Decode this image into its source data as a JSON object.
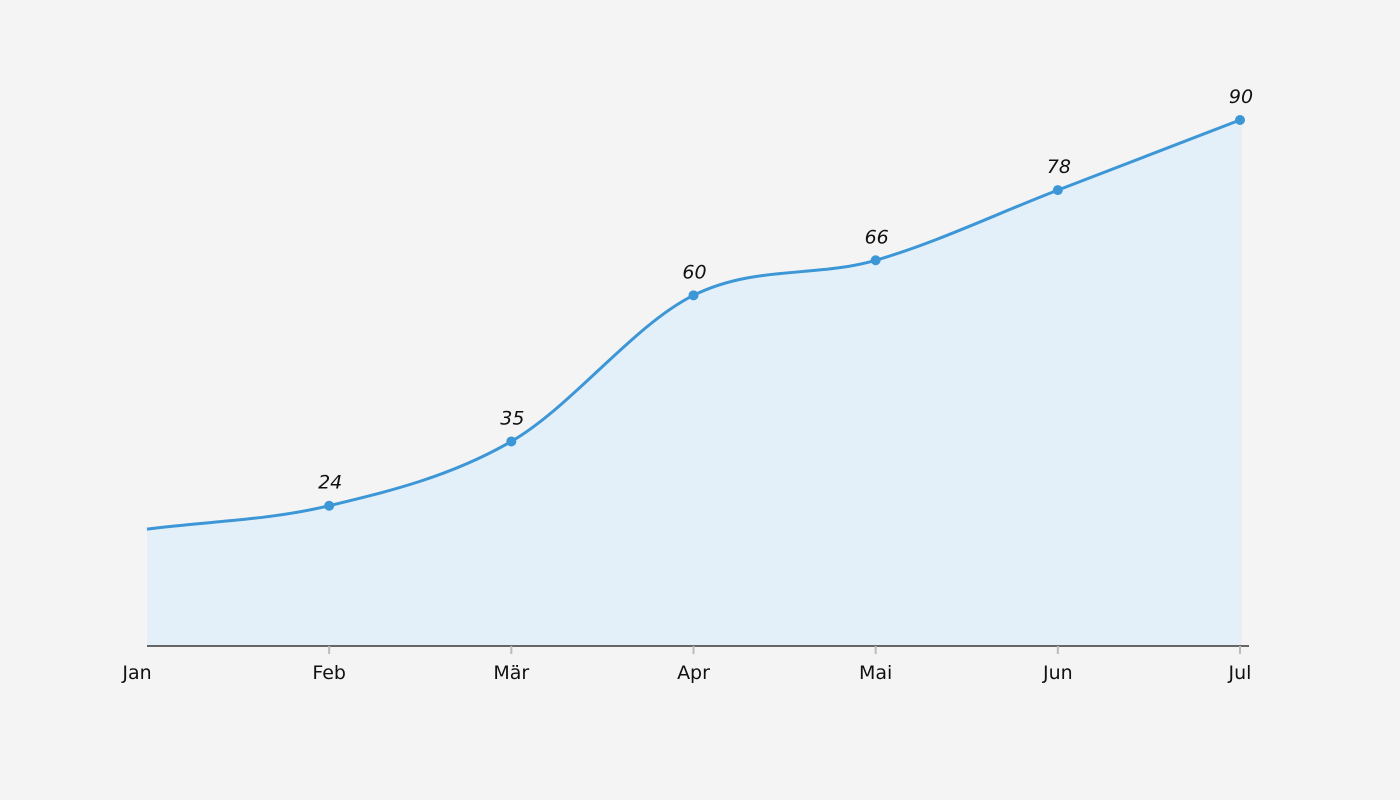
{
  "chart_data": {
    "type": "area",
    "title": "",
    "xlabel": "",
    "ylabel": "",
    "categories": [
      "Jan",
      "Feb",
      "Mär",
      "Apr",
      "Mai",
      "Jun",
      "Jul"
    ],
    "values": [
      20,
      24,
      35,
      60,
      66,
      78,
      90
    ],
    "data_labels": [
      null,
      "24",
      "35",
      "60",
      "66",
      "78",
      "90"
    ],
    "ylim": [
      0,
      90
    ],
    "grid": false,
    "legend": null,
    "curve": "smooth",
    "colors": {
      "line": "#3d97d6",
      "fill": "#e3f0f9",
      "axis": "#666666",
      "background": "#f4f4f4"
    }
  }
}
